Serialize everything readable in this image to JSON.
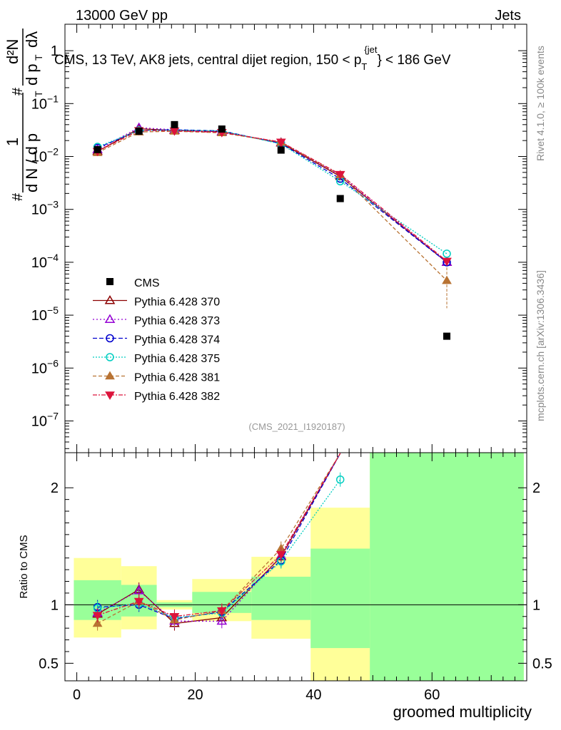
{
  "header": {
    "left": "13000 GeV pp",
    "right": "Jets"
  },
  "side_labels": {
    "rivet": "Rivet 4.1.0, ≥ 100k events",
    "mcplots": "mcplots.cern.ch [arXiv:1306.3436]"
  },
  "chart_data": {
    "type": "scatter",
    "title_main": "CMS, 13 TeV, AK8 jets, central dijet region, 150 < p",
    "title_sub": "T",
    "title_sup": "{jet",
    "title_end": "} < 186 GeV",
    "watermark": "(CMS_2021_I1920187)",
    "ylabel": "1/dN/dp_T  d²N/dp_T dλ",
    "ylabel_parts": {
      "frac1_num": "1",
      "frac1_den": "d N / d p",
      "frac2_num": "d²N",
      "frac2_den": "d p",
      "frac2_tail": "dλ",
      "sub_T": "T",
      "hash": "#"
    },
    "xlabel": "groomed multiplicity",
    "ratio_ylabel": "Ratio to CMS",
    "xlim": [
      -2,
      76
    ],
    "ylim_log": [
      -7.6,
      0.5
    ],
    "ratio_ylim": [
      0.35,
      2.3
    ],
    "x_ticks": [
      0,
      20,
      40,
      60
    ],
    "x_ticks_labels": [
      "0",
      "20",
      "40",
      "60"
    ],
    "y_ticks_labels": [
      "1",
      "10",
      "10",
      "10",
      "10",
      "10",
      "10",
      "10"
    ],
    "y_ticks_exponents": [
      "",
      "−1",
      "−2",
      "−3",
      "−4",
      "−5",
      "−6",
      "−7"
    ],
    "y_ticks_decades": [
      0,
      -1,
      -2,
      -3,
      -4,
      -5,
      -6,
      -7
    ],
    "ratio_ticks": [
      0.5,
      1,
      2
    ],
    "ratio_ticks_labels": [
      "0.5",
      "1",
      "2"
    ],
    "x": [
      3.5,
      10.5,
      16.5,
      24.5,
      34.5,
      44.5,
      62.5
    ],
    "bin_edges": [
      -0.5,
      7.5,
      13.5,
      19.5,
      29.5,
      39.5,
      49.5,
      75.5
    ],
    "band_yellow": [
      [
        0.72,
        1.4
      ],
      [
        0.79,
        1.33
      ],
      [
        0.96,
        1.04
      ],
      [
        0.86,
        1.22
      ],
      [
        0.71,
        1.41
      ],
      [
        0.35,
        1.83
      ],
      [
        0.35,
        2.3
      ]
    ],
    "band_green": [
      [
        0.87,
        1.21
      ],
      [
        0.9,
        1.17
      ],
      [
        0.98,
        1.02
      ],
      [
        0.93,
        1.11
      ],
      [
        0.87,
        1.24
      ],
      [
        0.63,
        1.48
      ],
      [
        0.35,
        2.3
      ]
    ],
    "cms": {
      "name": "CMS",
      "values": [
        0.0135,
        0.03,
        0.04,
        0.033,
        0.0132,
        0.0016,
        4e-06
      ]
    },
    "series": [
      {
        "name": "Pythia 6.428 370",
        "color": "#8b0000",
        "marker": "triangle-open",
        "dash": "",
        "values": [
          0.0125,
          0.0335,
          0.031,
          0.0295,
          0.018,
          0.0042,
          0.0001
        ],
        "ratio": [
          0.92,
          1.13,
          0.84,
          0.89,
          1.41,
          2.3,
          null
        ]
      },
      {
        "name": "Pythia 6.428 373",
        "color": "#9400d3",
        "marker": "triangle-open",
        "dash": "2,3",
        "values": [
          0.0135,
          0.035,
          0.032,
          0.029,
          0.0185,
          0.0044,
          0.0001
        ],
        "ratio": [
          0.93,
          1.12,
          0.86,
          0.86,
          1.42,
          2.3,
          null
        ]
      },
      {
        "name": "Pythia 6.428 374",
        "color": "#0000cd",
        "marker": "circle-open",
        "dash": "6,3",
        "values": [
          0.0145,
          0.031,
          0.032,
          0.0305,
          0.0175,
          0.0038,
          0.0001
        ],
        "ratio": [
          0.98,
          1.0,
          0.88,
          0.94,
          1.38,
          2.3,
          null
        ]
      },
      {
        "name": "Pythia 6.428 375",
        "color": "#00cec1",
        "marker": "circle-open",
        "dash": "2,2",
        "values": [
          0.0152,
          0.031,
          0.0315,
          0.0305,
          0.0172,
          0.0034,
          0.000145
        ],
        "ratio": [
          0.97,
          1.01,
          0.89,
          0.93,
          1.37,
          2.07,
          null
        ]
      },
      {
        "name": "Pythia 6.428 381",
        "color": "#b87333",
        "marker": "triangle-filled",
        "dash": "5,3",
        "values": [
          0.0118,
          0.029,
          0.03,
          0.028,
          0.0185,
          0.0045,
          4.5e-05
        ],
        "ratio": [
          0.84,
          1.03,
          0.87,
          0.95,
          1.48,
          2.3,
          null
        ]
      },
      {
        "name": "Pythia 6.428 382",
        "color": "#dc143c",
        "marker": "triangle-down-filled",
        "dash": "6,2,2,2",
        "values": [
          0.0125,
          0.031,
          0.0305,
          0.0285,
          0.0188,
          0.0046,
          0.000105
        ],
        "ratio": [
          0.91,
          1.03,
          0.9,
          0.95,
          1.43,
          2.3,
          null
        ]
      }
    ]
  }
}
